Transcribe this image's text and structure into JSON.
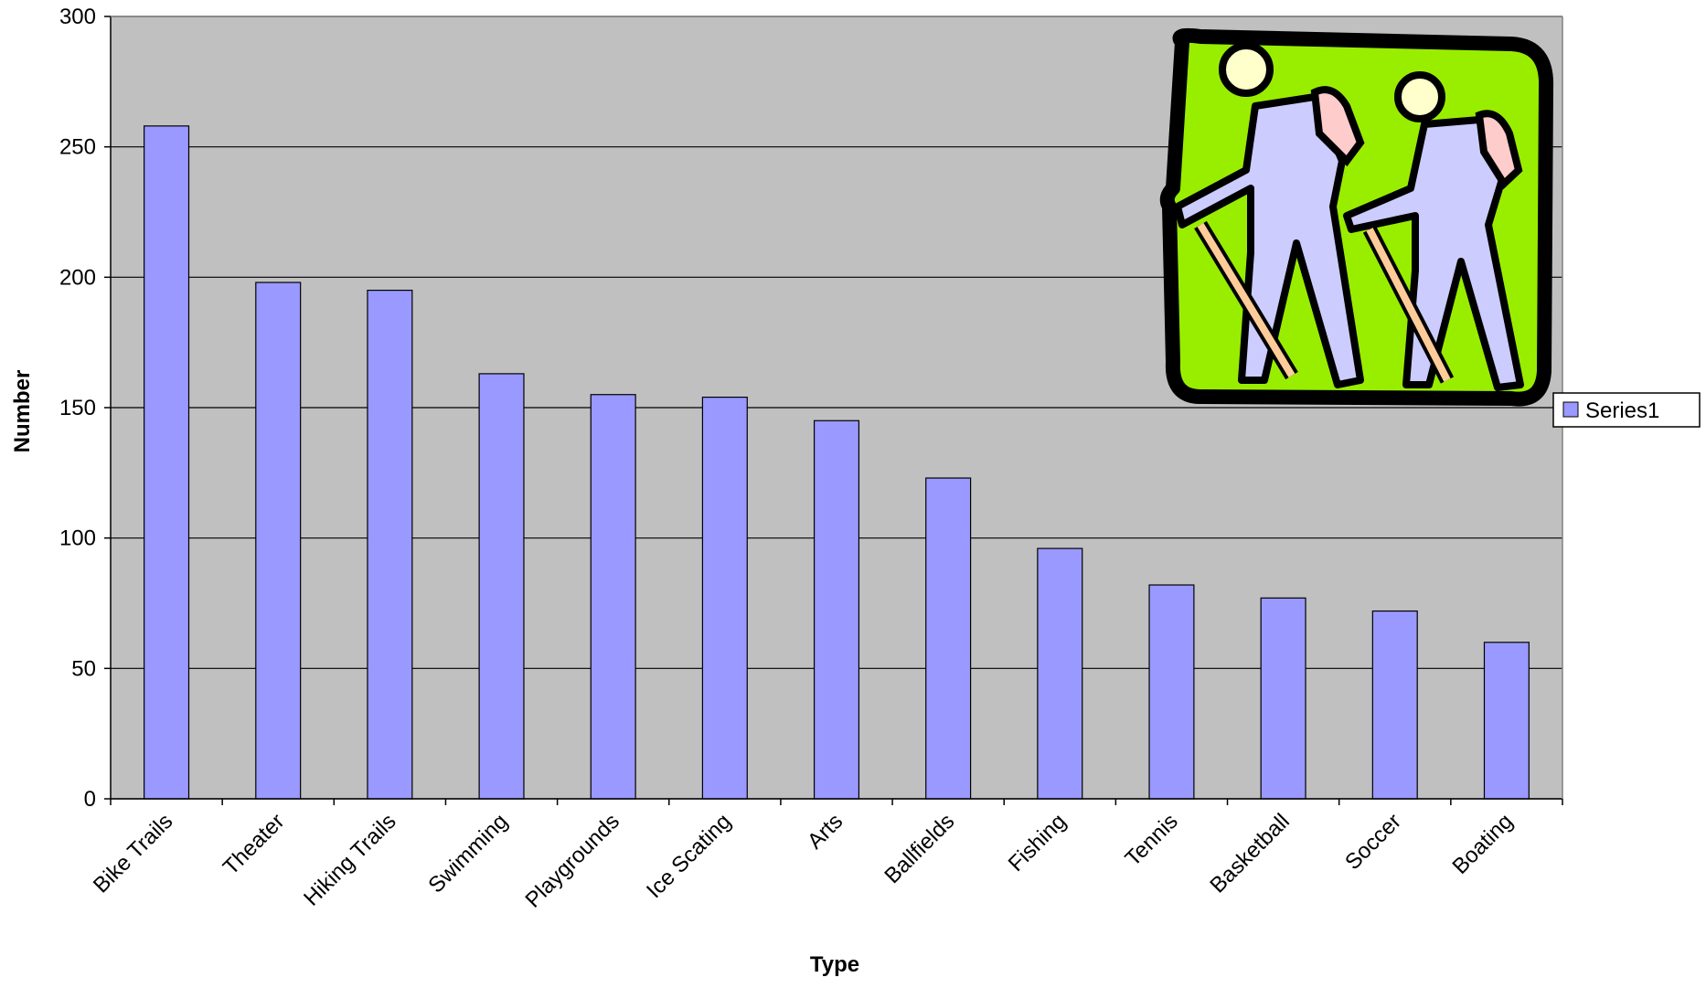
{
  "chart_data": {
    "type": "bar",
    "x_label": "Type",
    "y_label": "Number",
    "categories": [
      "Bike Trails",
      "Theater",
      "Hiking Trails",
      "Swimming",
      "Playgrounds",
      "Ice Scating",
      "Arts",
      "Ballfields",
      "Fishing",
      "Tennis",
      "Basketball",
      "Soccer",
      "Boating"
    ],
    "series": [
      {
        "name": "Series1",
        "color": "#9999ff",
        "values": [
          258,
          198,
          195,
          163,
          155,
          154,
          145,
          123,
          96,
          82,
          77,
          72,
          60
        ]
      }
    ],
    "ylim": [
      0,
      300
    ],
    "yticks": [
      0,
      50,
      100,
      150,
      200,
      250,
      300
    ],
    "grid": true,
    "legend": "right"
  }
}
